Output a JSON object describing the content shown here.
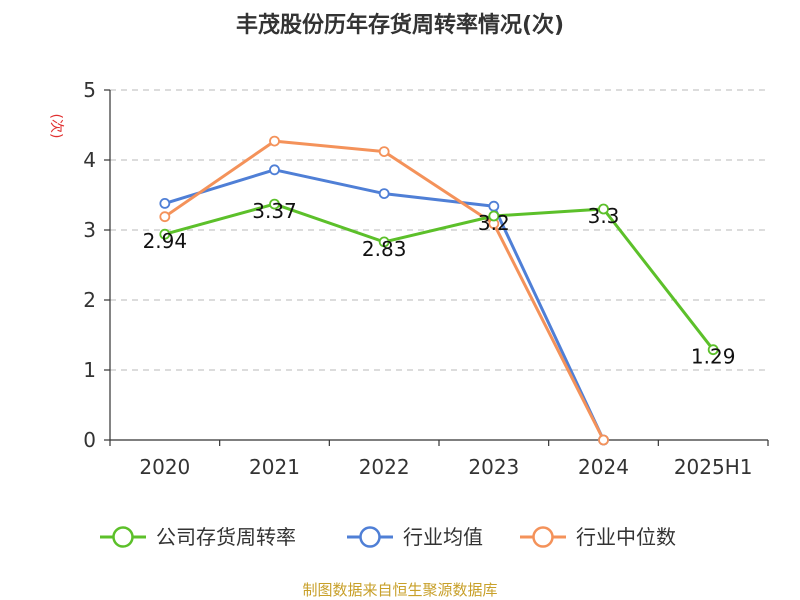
{
  "chart_data": {
    "type": "line",
    "title": "丰茂股份历年存货周转率情况(次)",
    "ylabel": "(次)",
    "xlabel": "",
    "categories": [
      "2020",
      "2021",
      "2022",
      "2023",
      "2024",
      "2025H1"
    ],
    "yticks": [
      "0",
      "1",
      "2",
      "3",
      "4",
      "5"
    ],
    "ylim": [
      0,
      5
    ],
    "grid": true,
    "legend_position": "bottom",
    "series": [
      {
        "name": "公司存货周转率",
        "color": "#5cc02a",
        "values": [
          2.94,
          3.37,
          2.83,
          3.2,
          3.3,
          1.29
        ],
        "labels": [
          "2.94",
          "3.37",
          "2.83",
          "3.2",
          "3.3",
          "1.29"
        ]
      },
      {
        "name": "行业均值",
        "color": "#4f7fd6",
        "values": [
          3.38,
          3.86,
          3.52,
          3.34,
          0,
          null
        ],
        "labels": null
      },
      {
        "name": "行业中位数",
        "color": "#f4925a",
        "values": [
          3.19,
          4.27,
          4.12,
          3.09,
          0,
          null
        ],
        "labels": null
      }
    ],
    "source": "制图数据来自恒生聚源数据库"
  }
}
